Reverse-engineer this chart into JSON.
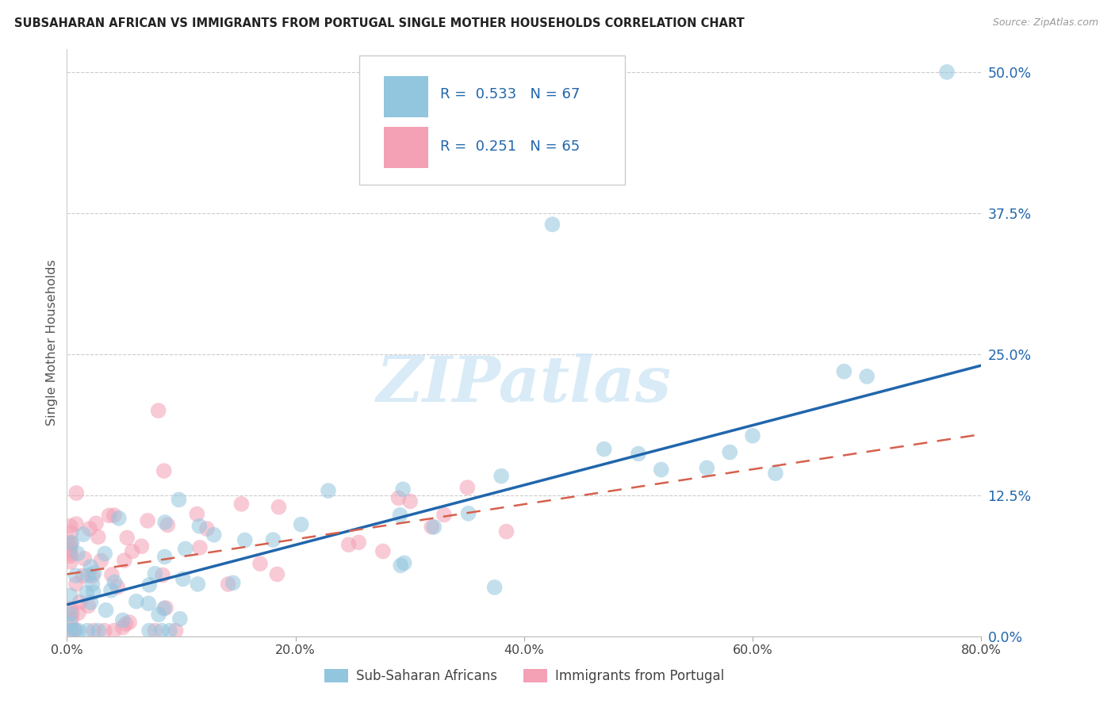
{
  "title": "SUBSAHARAN AFRICAN VS IMMIGRANTS FROM PORTUGAL SINGLE MOTHER HOUSEHOLDS CORRELATION CHART",
  "source": "Source: ZipAtlas.com",
  "ylabel": "Single Mother Households",
  "ytick_labels": [
    "0.0%",
    "12.5%",
    "25.0%",
    "37.5%",
    "50.0%"
  ],
  "ytick_values": [
    0.0,
    12.5,
    25.0,
    37.5,
    50.0
  ],
  "xtick_labels": [
    "0.0%",
    "20.0%",
    "40.0%",
    "60.0%",
    "80.0%"
  ],
  "xtick_values": [
    0.0,
    20.0,
    40.0,
    60.0,
    80.0
  ],
  "xlim": [
    0.0,
    80.0
  ],
  "ylim": [
    0.0,
    52.0
  ],
  "legend_label1": "Sub-Saharan Africans",
  "legend_label2": "Immigrants from Portugal",
  "r1": "0.533",
  "n1": "67",
  "r2": "0.251",
  "n2": "65",
  "color_blue": "#92c5de",
  "color_blue_line": "#2166ac",
  "color_pink": "#f4a0b5",
  "color_pink_line": "#d6604d",
  "watermark": "ZIPatlas",
  "slope_blue": 0.265,
  "intercept_blue": 2.8,
  "slope_pink": 0.155,
  "intercept_pink": 5.5
}
